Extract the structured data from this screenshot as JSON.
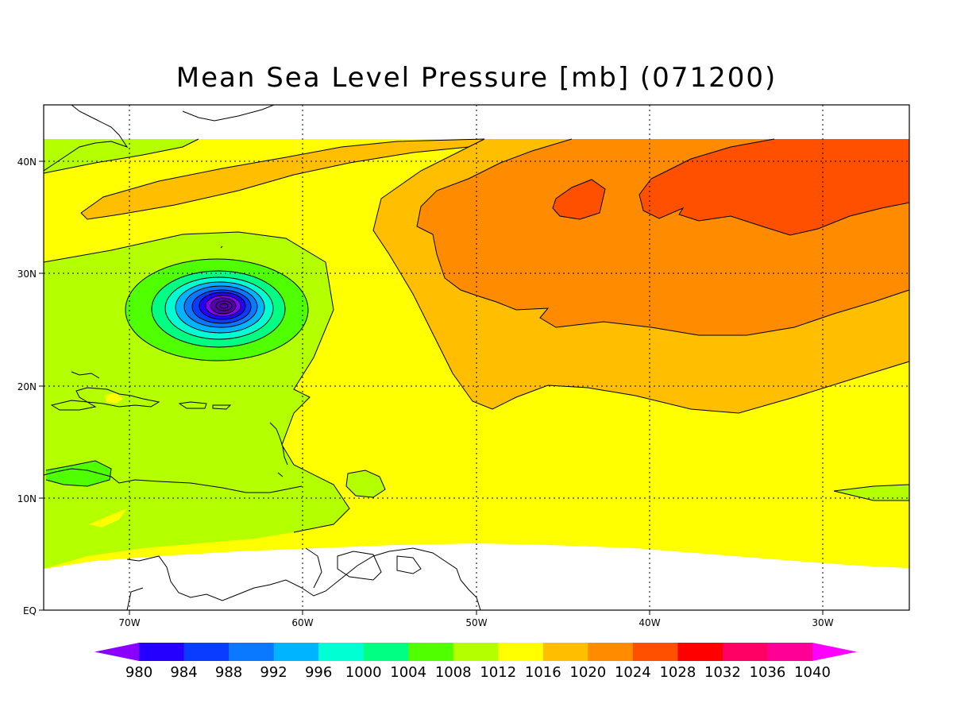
{
  "title": "Mean Sea Level Pressure [mb] (071200)",
  "lat_labels": [
    "40N",
    "30N",
    "20N",
    "10N",
    "EQ"
  ],
  "lon_labels": [
    "70W",
    "60W",
    "50W",
    "40W",
    "30W"
  ],
  "colorbar": {
    "labels": [
      "980",
      "984",
      "988",
      "992",
      "996",
      "1000",
      "1004",
      "1008",
      "1012",
      "1016",
      "1020",
      "1024",
      "1028",
      "1032",
      "1036",
      "1040"
    ],
    "colors": [
      "#8a00ff",
      "#2600ff",
      "#0a3cff",
      "#0a78ff",
      "#00b4ff",
      "#00ffd2",
      "#00ff82",
      "#50ff00",
      "#b4ff00",
      "#ffff00",
      "#ffbe00",
      "#ff8c00",
      "#ff5000",
      "#ff0000",
      "#ff0064",
      "#ff0096",
      "#ff00ff"
    ]
  },
  "colors": {
    "low_center": "#5500aa",
    "land_outline": "#000000",
    "no_data": "#ffffff"
  }
}
